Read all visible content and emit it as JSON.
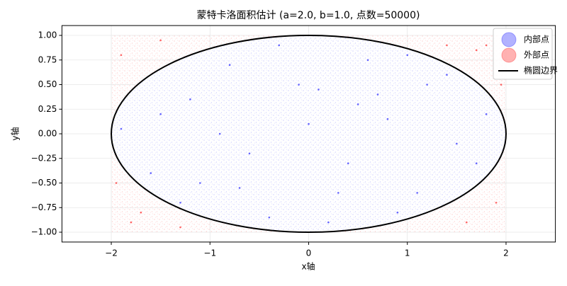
{
  "chart_data": {
    "type": "scatter",
    "title": "蒙特卡洛面积估计 (a=2.0, b=1.0, 点数=50000)",
    "x_label": "x轴",
    "y_label": "y轴",
    "xlim": [
      -2.5,
      2.5
    ],
    "ylim": [
      -1.1,
      1.1
    ],
    "xticks": [
      {
        "value": -2,
        "label": "−2"
      },
      {
        "value": -1,
        "label": "−1"
      },
      0,
      1,
      2
    ],
    "yticks": [
      {
        "value": -1,
        "label": "−1.00"
      },
      {
        "value": -0.75,
        "label": "−0.75"
      },
      {
        "value": -0.5,
        "label": "−0.50"
      },
      {
        "value": -0.25,
        "label": "−0.25"
      },
      {
        "value": 0,
        "label": "0.00"
      },
      {
        "value": 0.25,
        "label": "0.25"
      },
      {
        "value": 0.5,
        "label": "0.50"
      },
      {
        "value": 0.75,
        "label": "0.75"
      },
      {
        "value": 1,
        "label": "1.00"
      }
    ],
    "grid": true,
    "legend": "upper right",
    "series": [
      {
        "name": "内部点",
        "color": "#0000ff",
        "x": [
          -1.5,
          0.3,
          1.2,
          -0.8,
          0.0,
          1.7,
          -1.9,
          0.9,
          -0.3,
          0.5,
          -1.1,
          1.4,
          -0.6,
          0.2,
          1.0,
          -1.3,
          0.7,
          -0.1,
          1.8,
          -1.6,
          0.4,
          -0.9,
          1.1,
          -0.4,
          0.6,
          -1.2,
          1.5,
          0.1,
          -0.7,
          0.8
        ],
        "values": [
          0.2,
          -0.6,
          0.5,
          0.7,
          0.1,
          -0.3,
          0.05,
          -0.8,
          0.9,
          0.3,
          -0.5,
          0.6,
          -0.2,
          -0.9,
          0.8,
          -0.7,
          0.4,
          0.5,
          0.2,
          -0.4,
          -0.3,
          0.0,
          -0.6,
          -0.85,
          0.75,
          0.35,
          -0.1,
          0.45,
          -0.55,
          0.15
        ]
      },
      {
        "name": "外部点",
        "color": "#ff0000",
        "x": [
          -1.9,
          1.8,
          -1.7,
          1.9,
          -1.5,
          1.6,
          -1.95,
          1.95,
          -1.3,
          1.4,
          -1.8,
          1.7
        ],
        "values": [
          0.8,
          0.9,
          -0.8,
          -0.7,
          0.95,
          -0.9,
          -0.5,
          0.5,
          -0.95,
          0.9,
          -0.9,
          0.85
        ]
      }
    ],
    "ellipse": {
      "name": "椭圆边界",
      "color": "#000000",
      "a": 2,
      "b": 1
    }
  }
}
